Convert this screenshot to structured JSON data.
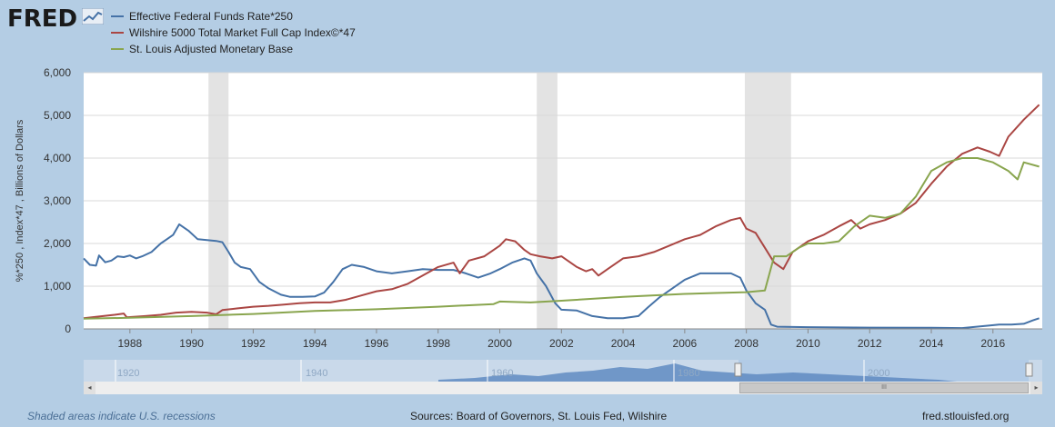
{
  "header": {
    "logo_text": "FRED",
    "logo_icon": "trend-chart-icon"
  },
  "legend": [
    {
      "label": "Effective Federal Funds Rate*250",
      "color": "#4572a7"
    },
    {
      "label": "Wilshire 5000 Total Market Full Cap Index©*47",
      "color": "#aa4643"
    },
    {
      "label": "St. Louis Adjusted Monetary Base",
      "color": "#89a54e"
    }
  ],
  "chart_data": {
    "type": "line",
    "ylabel": "%*250 , Index*47 , Billions of Dollars",
    "ylim": [
      0,
      6000
    ],
    "xlim": [
      1986.5,
      2017.6
    ],
    "y_ticks": [
      "0",
      "1,000",
      "2,000",
      "3,000",
      "4,000",
      "5,000",
      "6,000"
    ],
    "x_ticks": [
      "1988",
      "1990",
      "1992",
      "1994",
      "1996",
      "1998",
      "2000",
      "2002",
      "2004",
      "2006",
      "2008",
      "2010",
      "2012",
      "2014",
      "2016"
    ],
    "grid": true,
    "legend_position": "top-left",
    "recessions": [
      [
        1990.55,
        1991.2
      ],
      [
        2001.2,
        2001.87
      ],
      [
        2007.95,
        2009.45
      ]
    ],
    "series": [
      {
        "name": "Effective Federal Funds Rate*250",
        "color": "#4572a7",
        "x": [
          1986.5,
          1986.7,
          1986.9,
          1987.0,
          1987.2,
          1987.4,
          1987.6,
          1987.8,
          1988.0,
          1988.2,
          1988.4,
          1988.7,
          1989.0,
          1989.2,
          1989.4,
          1989.6,
          1989.9,
          1990.2,
          1990.5,
          1990.8,
          1991.0,
          1991.2,
          1991.4,
          1991.6,
          1991.9,
          1992.2,
          1992.5,
          1992.9,
          1993.2,
          1993.6,
          1994.0,
          1994.3,
          1994.6,
          1994.9,
          1995.2,
          1995.6,
          1996.0,
          1996.5,
          1997.0,
          1997.5,
          1998.0,
          1998.5,
          1998.9,
          1999.3,
          1999.7,
          2000.0,
          2000.4,
          2000.8,
          2001.0,
          2001.2,
          2001.5,
          2001.8,
          2002.0,
          2002.5,
          2003.0,
          2003.5,
          2004.0,
          2004.5,
          2004.8,
          2005.2,
          2005.6,
          2006.0,
          2006.5,
          2007.0,
          2007.5,
          2007.8,
          2008.0,
          2008.3,
          2008.6,
          2008.8,
          2009.0,
          2010.0,
          2012.0,
          2014.0,
          2015.0,
          2015.9,
          2016.2,
          2016.6,
          2017.0,
          2017.3,
          2017.5
        ],
        "values": [
          1650,
          1500,
          1480,
          1720,
          1560,
          1600,
          1700,
          1680,
          1720,
          1650,
          1700,
          1800,
          2000,
          2100,
          2200,
          2450,
          2300,
          2100,
          2080,
          2060,
          2030,
          1800,
          1550,
          1450,
          1400,
          1100,
          950,
          800,
          750,
          750,
          760,
          850,
          1100,
          1400,
          1500,
          1450,
          1350,
          1300,
          1350,
          1400,
          1380,
          1380,
          1300,
          1200,
          1300,
          1400,
          1550,
          1650,
          1600,
          1300,
          1000,
          600,
          450,
          430,
          300,
          250,
          250,
          300,
          500,
          750,
          950,
          1150,
          1300,
          1300,
          1300,
          1200,
          900,
          600,
          450,
          100,
          50,
          40,
          30,
          25,
          20,
          80,
          100,
          100,
          120,
          200,
          250
        ]
      },
      {
        "name": "Wilshire 5000 Total Market Full Cap Index©*47",
        "color": "#aa4643",
        "x": [
          1986.5,
          1987.0,
          1987.5,
          1987.8,
          1987.9,
          1988.5,
          1989.0,
          1989.5,
          1990.0,
          1990.5,
          1990.8,
          1991.0,
          1991.5,
          1992.0,
          1992.5,
          1993.0,
          1993.5,
          1994.0,
          1994.5,
          1995.0,
          1995.5,
          1996.0,
          1996.5,
          1997.0,
          1997.5,
          1998.0,
          1998.5,
          1998.7,
          1999.0,
          1999.5,
          2000.0,
          2000.2,
          2000.5,
          2000.8,
          2001.0,
          2001.3,
          2001.7,
          2002.0,
          2002.5,
          2002.8,
          2003.0,
          2003.2,
          2003.5,
          2004.0,
          2004.5,
          2005.0,
          2005.5,
          2006.0,
          2006.5,
          2007.0,
          2007.5,
          2007.8,
          2008.0,
          2008.3,
          2008.6,
          2008.9,
          2009.2,
          2009.5,
          2010.0,
          2010.5,
          2011.0,
          2011.4,
          2011.7,
          2012.0,
          2012.5,
          2013.0,
          2013.5,
          2014.0,
          2014.5,
          2015.0,
          2015.5,
          2015.9,
          2016.2,
          2016.5,
          2017.0,
          2017.5
        ],
        "values": [
          250,
          290,
          330,
          360,
          270,
          300,
          330,
          380,
          400,
          380,
          340,
          440,
          480,
          520,
          540,
          570,
          600,
          620,
          620,
          680,
          780,
          880,
          930,
          1050,
          1250,
          1450,
          1550,
          1300,
          1600,
          1700,
          1950,
          2100,
          2050,
          1850,
          1750,
          1700,
          1650,
          1700,
          1450,
          1350,
          1400,
          1250,
          1400,
          1650,
          1700,
          1800,
          1950,
          2100,
          2200,
          2400,
          2550,
          2600,
          2350,
          2250,
          1900,
          1550,
          1400,
          1800,
          2050,
          2200,
          2400,
          2550,
          2350,
          2450,
          2550,
          2700,
          2950,
          3400,
          3800,
          4100,
          4250,
          4150,
          4050,
          4500,
          4900,
          5250
        ]
      },
      {
        "name": "St. Louis Adjusted Monetary Base",
        "color": "#89a54e",
        "x": [
          1986.5,
          1988.0,
          1990.0,
          1992.0,
          1994.0,
          1996.0,
          1998.0,
          1999.8,
          2000.0,
          2001.0,
          2002.0,
          2004.0,
          2006.0,
          2007.0,
          2008.0,
          2008.6,
          2008.9,
          2009.3,
          2009.7,
          2010.0,
          2010.5,
          2011.0,
          2011.5,
          2012.0,
          2012.5,
          2013.0,
          2013.5,
          2014.0,
          2014.5,
          2015.0,
          2015.5,
          2016.0,
          2016.5,
          2016.8,
          2017.0,
          2017.5
        ],
        "values": [
          240,
          260,
          300,
          350,
          420,
          460,
          520,
          580,
          640,
          620,
          660,
          750,
          820,
          840,
          860,
          900,
          1700,
          1700,
          1900,
          2000,
          2000,
          2050,
          2400,
          2650,
          2600,
          2700,
          3100,
          3700,
          3900,
          4000,
          4000,
          3900,
          3700,
          3500,
          3900,
          3800
        ]
      }
    ]
  },
  "navigator": {
    "labels": [
      "1920",
      "1940",
      "1960",
      "1980",
      "2000"
    ],
    "scroll_thumb_label": "III",
    "scroll_left": "◂",
    "scroll_right": "▸"
  },
  "footer": {
    "note": "Shaded areas indicate U.S. recessions",
    "sources": "Sources: Board of Governors, St. Louis Fed, Wilshire",
    "site": "fred.stlouisfed.org"
  }
}
